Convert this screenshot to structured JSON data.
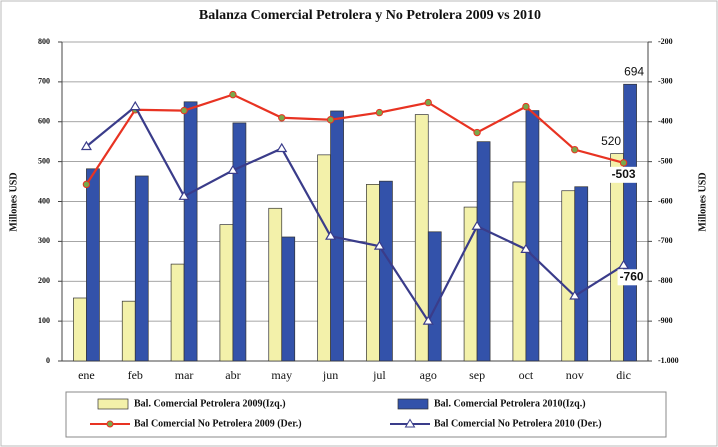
{
  "chart_data": {
    "type": "bar_line",
    "title": "Balanza Comercial Petrolera y No Petrolera 2009 vs 2010",
    "ylabel": "Millones USD",
    "y2label": "Millones USD",
    "categories": [
      "ene",
      "feb",
      "mar",
      "abr",
      "may",
      "jun",
      "jul",
      "ago",
      "sep",
      "oct",
      "nov",
      "dic"
    ],
    "series": [
      {
        "name": "Bal. Comercial Petrolera 2009(Izq.)",
        "type": "bar",
        "axis": "y",
        "color": "#f3f1aa",
        "values": [
          158,
          150,
          243,
          342,
          383,
          517,
          443,
          618,
          386,
          449,
          427,
          520
        ]
      },
      {
        "name": "Bal. Comercial Petrolera 2010(Izq.)",
        "type": "bar",
        "axis": "y",
        "color": "#3352aa",
        "values": [
          482,
          464,
          650,
          597,
          311,
          627,
          451,
          324,
          550,
          628,
          437,
          694
        ]
      },
      {
        "name": "Bal Comercial No Petrolera 2009 (Der.)",
        "type": "line",
        "axis": "y2",
        "color": "#e83322",
        "marker": "circle",
        "values": [
          -557,
          -370,
          -372,
          -332,
          -390,
          -395,
          -377,
          -352,
          -427,
          -362,
          -470,
          -503
        ]
      },
      {
        "name": "Bal Comercial No Petrolera 2010 (Der.)",
        "type": "line",
        "axis": "y2",
        "color": "#3a3c8a",
        "marker": "triangle",
        "values": [
          -462,
          -362,
          -587,
          -522,
          -467,
          -687,
          -712,
          -900,
          -662,
          -720,
          -837,
          -760
        ]
      }
    ],
    "data_labels": "last",
    "ylim": [
      0,
      800
    ],
    "yticks": [
      0,
      100,
      200,
      300,
      400,
      500,
      600,
      700,
      800
    ],
    "y2lim": [
      -1000,
      -200
    ],
    "y2ticks": [
      {
        "value": -1000,
        "label": "-1.000"
      },
      -900,
      -800,
      -700,
      -600,
      -500,
      -400,
      -300,
      -200
    ],
    "y2_inverted": true,
    "grid": true
  }
}
